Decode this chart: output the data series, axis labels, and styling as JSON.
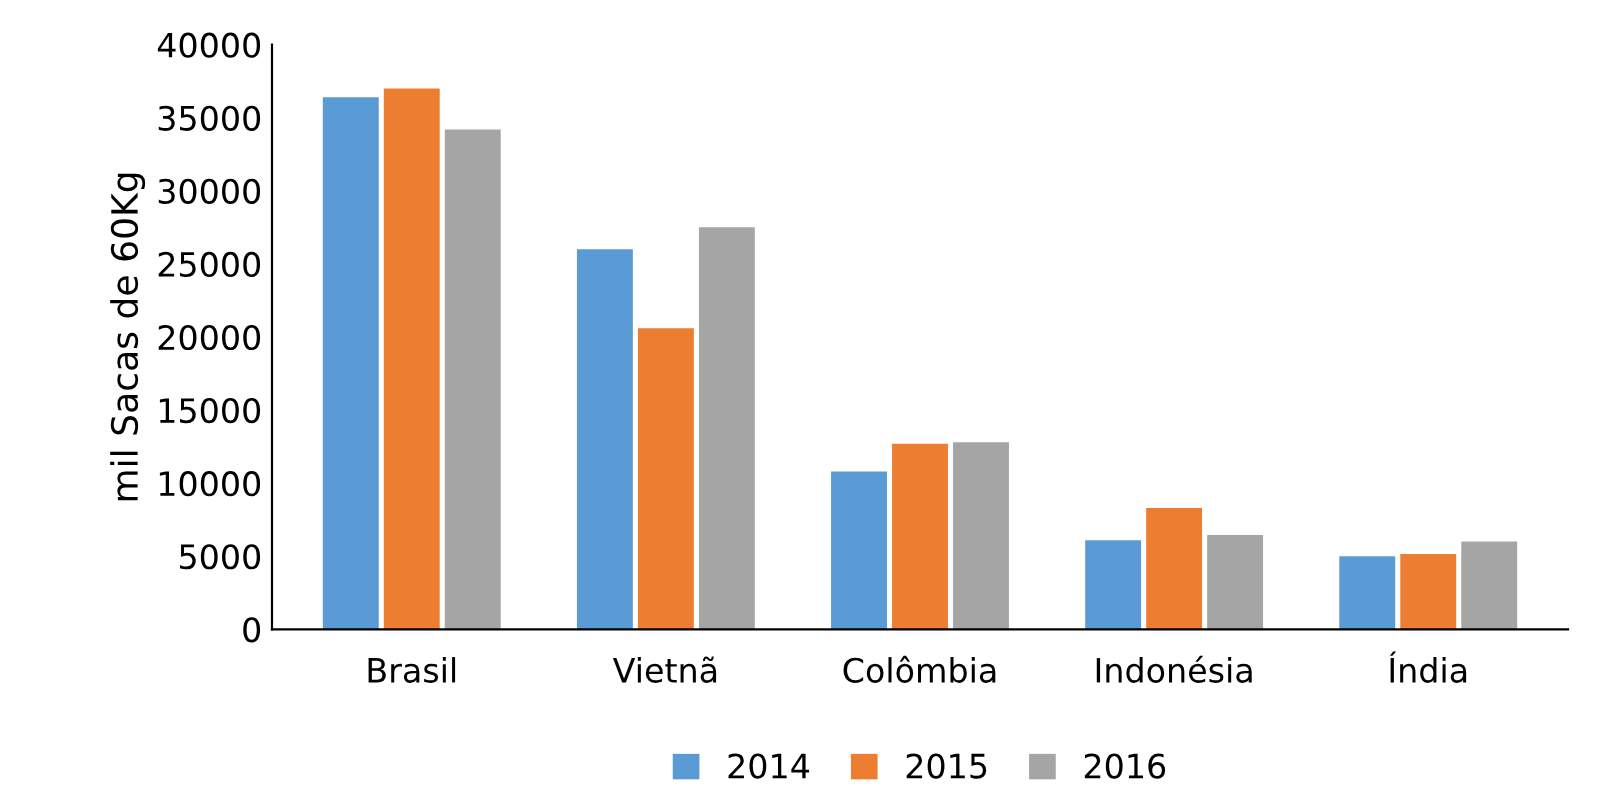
{
  "chart_data": {
    "type": "bar",
    "ylabel": "mil Sacas de 60Kg",
    "categories": [
      "Brasil",
      "Vietnã",
      "Colômbia",
      "Indonésia",
      "Índia"
    ],
    "series": [
      {
        "name": "2014",
        "color": "#5b9bd5",
        "values": [
          36400,
          26000,
          10800,
          6100,
          5000
        ]
      },
      {
        "name": "2015",
        "color": "#ed7d31",
        "values": [
          37000,
          20600,
          12700,
          8300,
          5150
        ]
      },
      {
        "name": "2016",
        "color": "#a5a5a5",
        "values": [
          34200,
          27500,
          12800,
          6450,
          6000
        ]
      }
    ],
    "ylim": [
      0,
      40000
    ],
    "yticks": [
      0,
      5000,
      10000,
      15000,
      20000,
      25000,
      30000,
      35000,
      40000
    ],
    "grid": false,
    "legend": "bottom"
  }
}
